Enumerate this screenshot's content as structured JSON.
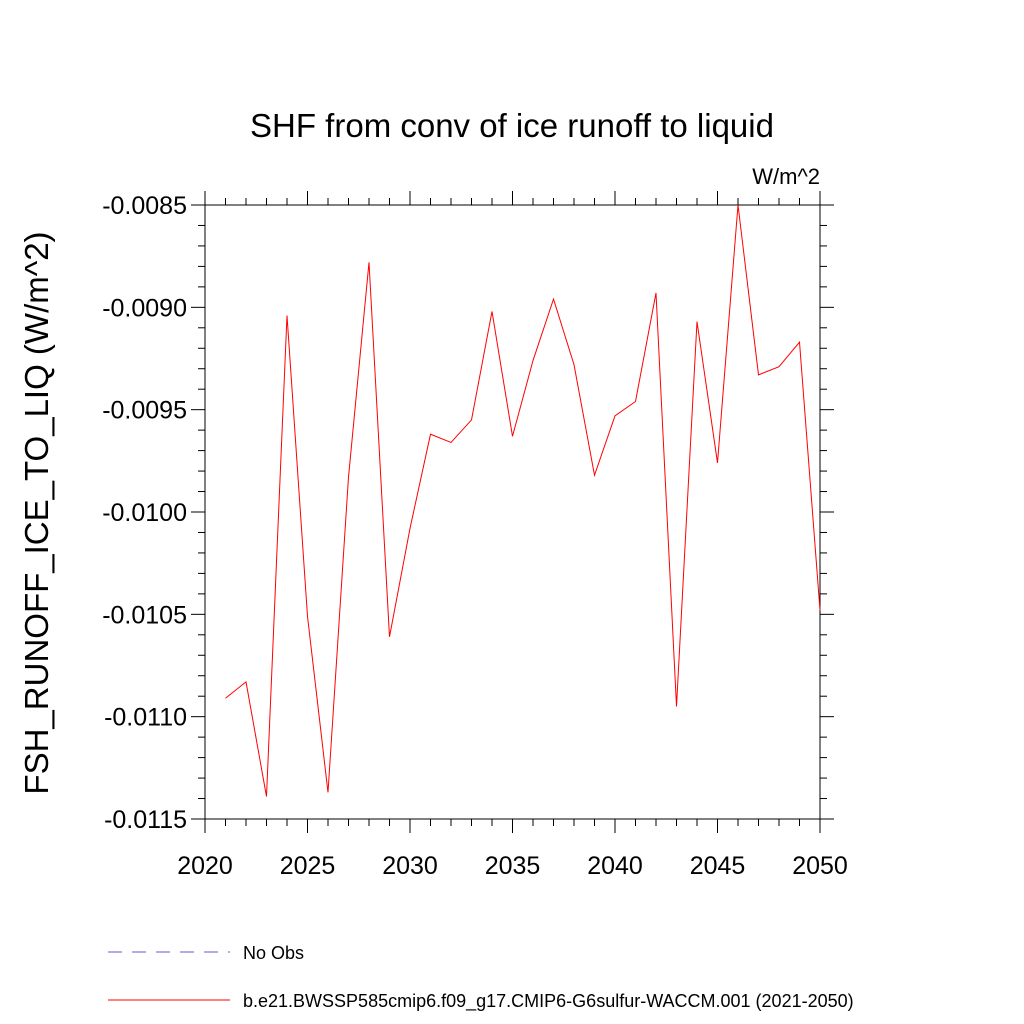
{
  "chart_data": {
    "type": "line",
    "title": "SHF from conv of ice runoff to liquid",
    "units": "W/m^2",
    "ylabel": "FSH_RUNOFF_ICE_TO_LIQ  (W/m^2)",
    "xlabel": "",
    "xlim": [
      2020,
      2050
    ],
    "ylim": [
      -0.0115,
      -0.0085
    ],
    "x_ticks": [
      "2020",
      "2025",
      "2030",
      "2035",
      "2040",
      "2045",
      "2050"
    ],
    "y_ticks": [
      "-0.0085",
      "-0.0090",
      "-0.0095",
      "-0.0100",
      "-0.0105",
      "-0.0110",
      "-0.0115"
    ],
    "grid": false,
    "legend_placement": "bottom",
    "series": [
      {
        "name": "b.e21.BWSSP585cmip6.f09_g17.CMIP6-G6sulfur-WACCM.001 (2021-2050)",
        "color": "#ff0000",
        "x": [
          2021,
          2022,
          2023,
          2024,
          2025,
          2026,
          2027,
          2028,
          2029,
          2030,
          2031,
          2032,
          2033,
          2034,
          2035,
          2036,
          2037,
          2038,
          2039,
          2040,
          2041,
          2042,
          2043,
          2044,
          2045,
          2046,
          2047,
          2048,
          2049,
          2050
        ],
        "values": [
          -0.01091,
          -0.01083,
          -0.01139,
          -0.00904,
          -0.01051,
          -0.01137,
          -0.00983,
          -0.00878,
          -0.01061,
          -0.01008,
          -0.00962,
          -0.00966,
          -0.00955,
          -0.00902,
          -0.00963,
          -0.00926,
          -0.00896,
          -0.00928,
          -0.00982,
          -0.00953,
          -0.00946,
          -0.00893,
          -0.01095,
          -0.00907,
          -0.00976,
          -0.0085,
          -0.00933,
          -0.00929,
          -0.00917,
          -0.01048
        ]
      }
    ],
    "legend": [
      {
        "label": "No Obs",
        "color": "#6a5acd",
        "style": "dashed"
      },
      {
        "label": "b.e21.BWSSP585cmip6.f09_g17.CMIP6-G6sulfur-WACCM.001 (2021-2050)",
        "color": "#ff0000",
        "style": "solid"
      }
    ]
  }
}
